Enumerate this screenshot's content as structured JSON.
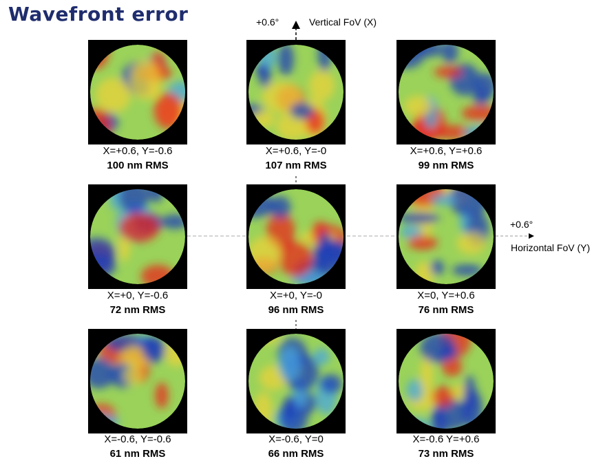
{
  "title": "Wavefront error",
  "axes": {
    "vertical": {
      "tick": "+0.6°",
      "label": "Vertical FoV (X)"
    },
    "horizontal": {
      "tick": "+0.6°",
      "label": "Horizontal FoV (Y)"
    }
  },
  "colors": {
    "title": "#1f2d6e",
    "map_low": "#1d3fb8",
    "map_mid": "#9ad25a",
    "map_high": "#e8251c"
  },
  "maps": [
    {
      "coord": "X=+0.6, Y=-0.6",
      "rms": "100 nm RMS"
    },
    {
      "coord": "X=+0.6, Y=-0",
      "rms": "107 nm RMS"
    },
    {
      "coord": "X=+0.6, Y=+0.6",
      "rms": "99 nm RMS"
    },
    {
      "coord": "X=+0, Y=-0.6",
      "rms": "72 nm RMS"
    },
    {
      "coord": "X=+0, Y=-0",
      "rms": "96 nm RMS"
    },
    {
      "coord": "X=0, Y=+0.6",
      "rms": "76 nm RMS"
    },
    {
      "coord": "X=-0.6, Y=-0.6",
      "rms": "61 nm RMS"
    },
    {
      "coord": "X=-0.6, Y=0",
      "rms": "66 nm RMS"
    },
    {
      "coord": "X=-0.6 Y=+0.6",
      "rms": "73 nm RMS"
    }
  ]
}
